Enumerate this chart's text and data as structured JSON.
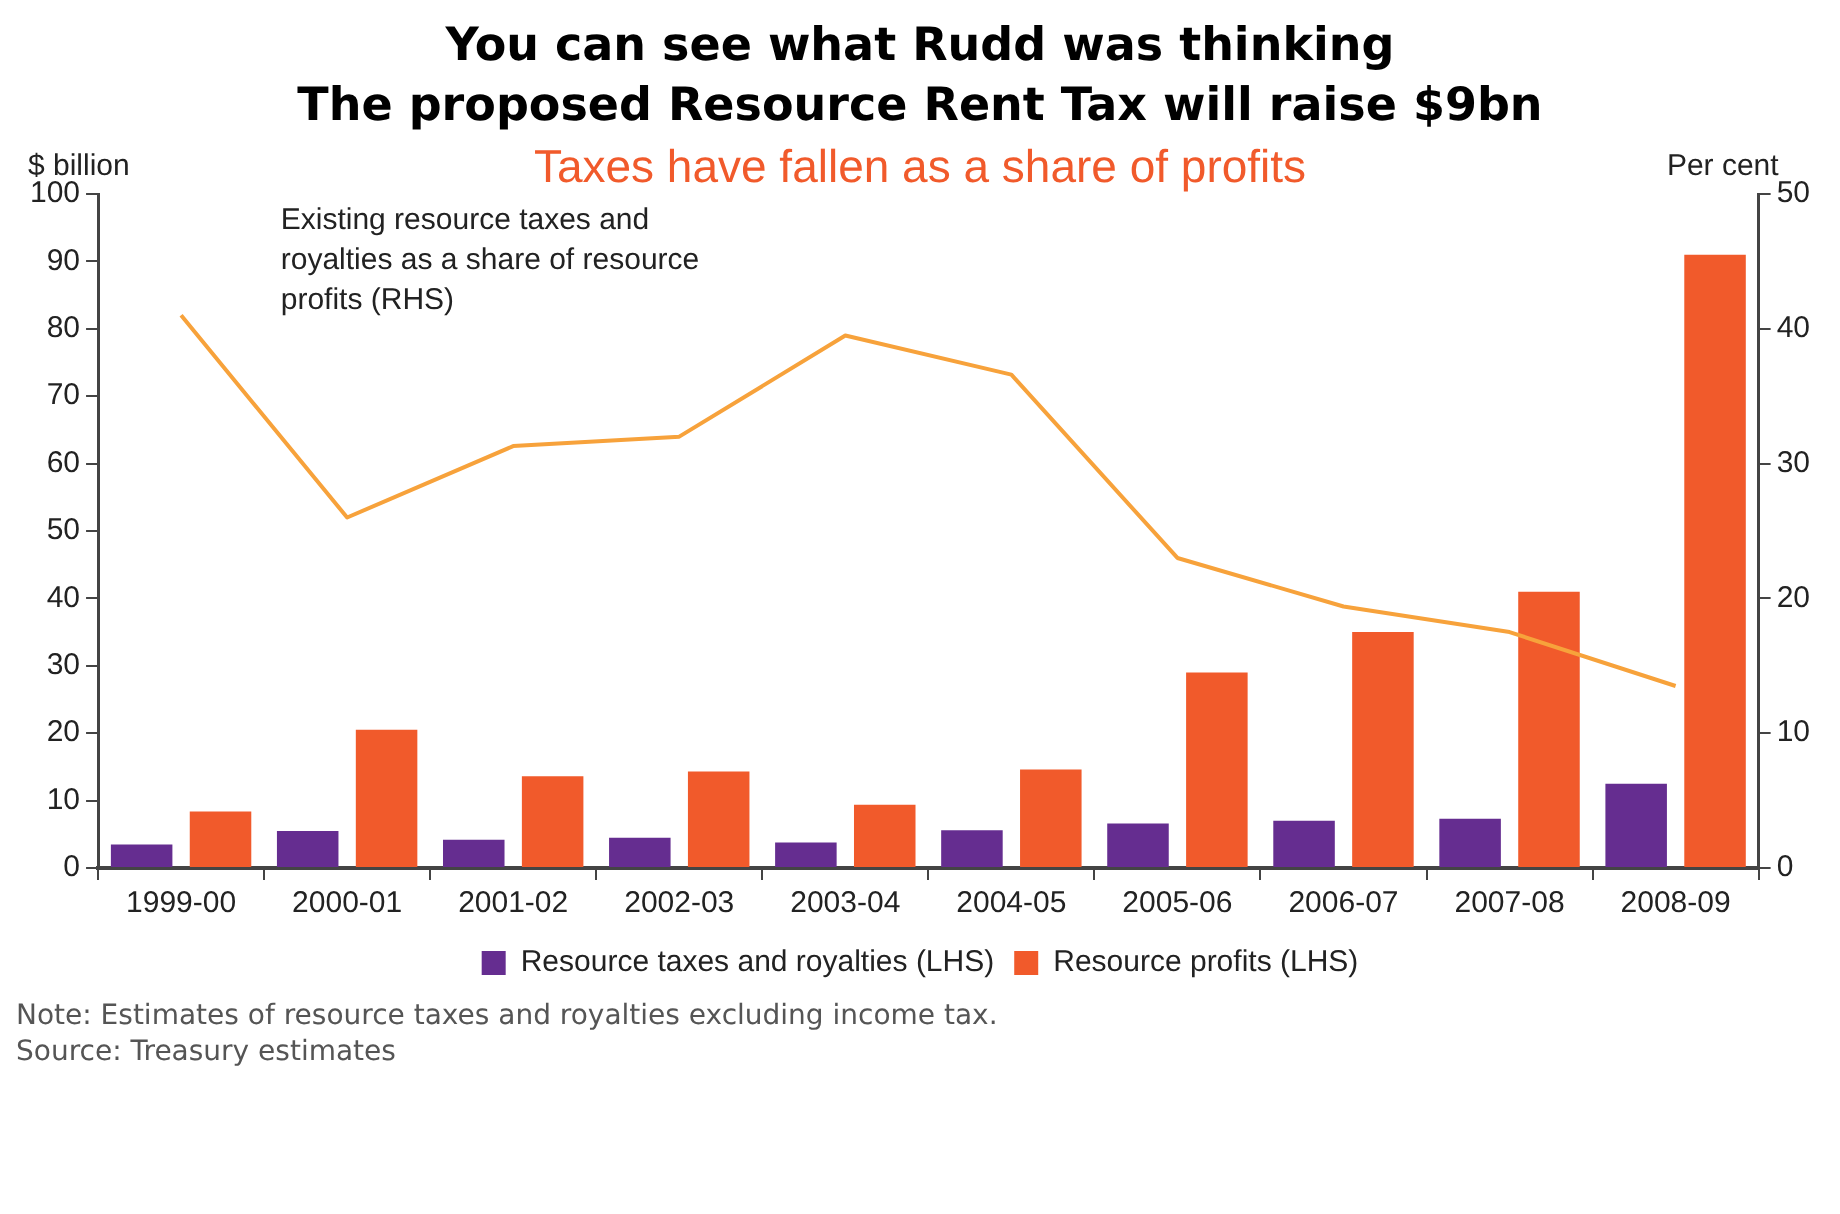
{
  "chart_data": {
    "type": "bar",
    "title": "You can see what Rudd was thinking\nThe proposed Resource Rent Tax will raise $9bn",
    "subtitle": "Taxes have fallen as a share of profits",
    "ylabel": "$ billion",
    "y2label": "Per cent",
    "categories": [
      "1999-00",
      "2000-01",
      "2001-02",
      "2002-03",
      "2003-04",
      "2004-05",
      "2005-06",
      "2006-07",
      "2007-08",
      "2008-09"
    ],
    "series": [
      {
        "name": "Resource taxes and royalties (LHS)",
        "color": "#652d90",
        "values": [
          3.5,
          5.5,
          4.2,
          4.5,
          3.8,
          5.6,
          6.6,
          7.0,
          7.3,
          12.5
        ]
      },
      {
        "name": "Resource profits (LHS)",
        "color": "#f15a2b",
        "values": [
          8.4,
          20.5,
          13.6,
          14.3,
          9.4,
          14.6,
          29,
          35,
          41,
          91
        ]
      },
      {
        "name": "Existing resource taxes and royalties as a share of resource profits (RHS)",
        "type": "line",
        "axis": "y2",
        "color": "#f7a23b",
        "values": [
          41,
          26,
          31.3,
          32,
          39.5,
          36.6,
          23,
          19.4,
          17.5,
          13.5
        ]
      }
    ],
    "ylim": [
      0,
      100
    ],
    "yticks": [
      0,
      10,
      20,
      30,
      40,
      50,
      60,
      70,
      80,
      90,
      100
    ],
    "y2lim": [
      0,
      50
    ],
    "y2ticks": [
      0,
      10,
      20,
      30,
      40,
      50
    ],
    "grid": false,
    "legend": "bottom",
    "marker": "none",
    "annotations": [
      "Note: Estimates of resource taxes and royalties excluding income tax.",
      "Source: Treasury estimates"
    ]
  }
}
